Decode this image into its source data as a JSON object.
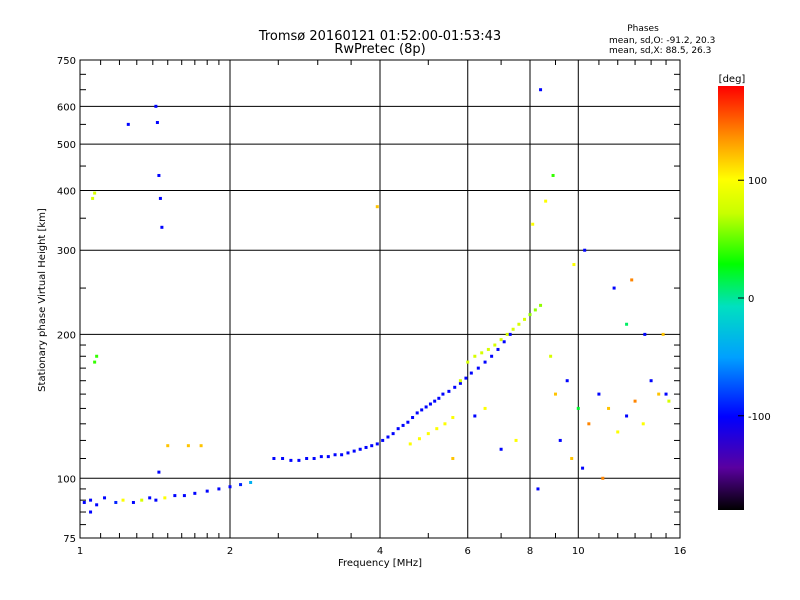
{
  "chart_data": {
    "type": "scatter",
    "title": "Tromsø 20160121 01:52:00-01:53:43",
    "subtitle": "RwPretec (8p)",
    "stats": {
      "heading": "Phases",
      "line1": "mean, sd,O:  -91.2, 20.3",
      "line2": "mean, sd,X:  88.5, 26.3"
    },
    "xlabel": "Frequency [MHz]",
    "ylabel": "Stationary phase Virtual Height [km]",
    "x_scale": "log",
    "y_scale": "log",
    "xlim": [
      1,
      16
    ],
    "ylim": [
      75,
      750
    ],
    "x_major_ticks": [
      1,
      2,
      4,
      8,
      16
    ],
    "x_minor_ticks": [
      6,
      10
    ],
    "y_major_ticks": [
      100,
      200,
      300,
      400,
      500,
      600,
      750,
      75
    ],
    "grid": true,
    "colorbar": {
      "label": "[deg]",
      "min": -180,
      "max": 180,
      "ticks": [
        100,
        0,
        -100
      ],
      "tick_labels": [
        "100",
        "0",
        "-100"
      ]
    },
    "series": [
      {
        "points": [
          [
            1.02,
            89,
            -100
          ],
          [
            1.05,
            90,
            -100
          ],
          [
            1.08,
            88,
            -100
          ],
          [
            1.12,
            91,
            -100
          ],
          [
            1.18,
            89,
            -90
          ],
          [
            1.22,
            90,
            100
          ],
          [
            1.28,
            89,
            -100
          ],
          [
            1.33,
            90,
            80
          ],
          [
            1.38,
            91,
            -100
          ],
          [
            1.42,
            90,
            -100
          ],
          [
            1.48,
            91,
            100
          ],
          [
            1.55,
            92,
            -100
          ],
          [
            1.62,
            92,
            -100
          ],
          [
            1.7,
            93,
            -100
          ],
          [
            1.8,
            94,
            -100
          ],
          [
            1.9,
            95,
            -100
          ],
          [
            2.0,
            96,
            -100
          ],
          [
            2.1,
            97,
            -90
          ],
          [
            2.2,
            98,
            -40
          ],
          [
            2.45,
            110,
            -100
          ],
          [
            2.55,
            110,
            -100
          ],
          [
            2.65,
            109,
            -100
          ],
          [
            2.75,
            109,
            -100
          ],
          [
            2.85,
            110,
            -100
          ],
          [
            2.95,
            110,
            -100
          ],
          [
            3.05,
            111,
            -100
          ],
          [
            3.15,
            111,
            -100
          ],
          [
            3.25,
            112,
            -100
          ],
          [
            3.35,
            112,
            -100
          ],
          [
            3.45,
            113,
            -100
          ],
          [
            3.55,
            114,
            -100
          ],
          [
            3.65,
            115,
            -100
          ],
          [
            3.75,
            116,
            -100
          ],
          [
            3.85,
            117,
            -100
          ],
          [
            3.95,
            118,
            -100
          ],
          [
            4.05,
            120,
            -100
          ],
          [
            4.15,
            122,
            -100
          ],
          [
            4.25,
            124,
            -100
          ],
          [
            4.35,
            127,
            -100
          ],
          [
            4.45,
            129,
            -100
          ],
          [
            4.55,
            131,
            -100
          ],
          [
            4.65,
            134,
            -100
          ],
          [
            4.75,
            137,
            -100
          ],
          [
            4.85,
            139,
            -100
          ],
          [
            4.95,
            141,
            -100
          ],
          [
            5.05,
            143,
            -100
          ],
          [
            5.15,
            145,
            -100
          ],
          [
            5.25,
            147,
            -100
          ],
          [
            5.35,
            150,
            -100
          ],
          [
            5.5,
            152,
            -100
          ],
          [
            5.65,
            155,
            -100
          ],
          [
            5.8,
            158,
            -100
          ],
          [
            5.95,
            162,
            -100
          ],
          [
            6.1,
            166,
            -100
          ],
          [
            6.3,
            170,
            -100
          ],
          [
            6.5,
            175,
            -100
          ],
          [
            6.7,
            180,
            -100
          ],
          [
            6.9,
            186,
            -100
          ],
          [
            7.1,
            193,
            -100
          ],
          [
            7.3,
            200,
            -100
          ],
          [
            4.6,
            118,
            100
          ],
          [
            4.8,
            121,
            100
          ],
          [
            5.0,
            124,
            100
          ],
          [
            5.2,
            127,
            100
          ],
          [
            5.4,
            130,
            100
          ],
          [
            5.6,
            134,
            100
          ],
          [
            5.8,
            160,
            80
          ],
          [
            6.0,
            175,
            80
          ],
          [
            6.2,
            180,
            80
          ],
          [
            6.4,
            183,
            80
          ],
          [
            6.6,
            186,
            80
          ],
          [
            6.8,
            190,
            80
          ],
          [
            7.0,
            195,
            80
          ],
          [
            7.2,
            200,
            80
          ],
          [
            7.4,
            205,
            80
          ],
          [
            7.6,
            210,
            80
          ],
          [
            7.8,
            215,
            80
          ],
          [
            8.0,
            220,
            60
          ],
          [
            8.2,
            225,
            60
          ],
          [
            8.4,
            230,
            60
          ],
          [
            1.05,
            85,
            -100
          ],
          [
            1.07,
            175,
            40
          ],
          [
            1.08,
            180,
            40
          ],
          [
            1.06,
            385,
            80
          ],
          [
            1.07,
            395,
            80
          ],
          [
            1.25,
            550,
            -100
          ],
          [
            1.42,
            600,
            -100
          ],
          [
            1.43,
            555,
            -100
          ],
          [
            1.44,
            430,
            -100
          ],
          [
            1.45,
            385,
            -100
          ],
          [
            1.46,
            335,
            -100
          ],
          [
            1.44,
            103,
            -100
          ],
          [
            1.5,
            117,
            120
          ],
          [
            1.65,
            117,
            120
          ],
          [
            1.75,
            117,
            120
          ],
          [
            3.95,
            370,
            120
          ],
          [
            8.1,
            340,
            100
          ],
          [
            8.4,
            650,
            -100
          ],
          [
            8.9,
            430,
            40
          ],
          [
            8.6,
            380,
            100
          ],
          [
            9.0,
            150,
            120
          ],
          [
            9.5,
            160,
            -100
          ],
          [
            10.0,
            140,
            20
          ],
          [
            10.5,
            130,
            140
          ],
          [
            11.0,
            150,
            -100
          ],
          [
            11.5,
            140,
            120
          ],
          [
            12.0,
            125,
            100
          ],
          [
            12.5,
            135,
            -100
          ],
          [
            13.0,
            145,
            140
          ],
          [
            13.5,
            130,
            100
          ],
          [
            14.0,
            160,
            -100
          ],
          [
            14.5,
            150,
            120
          ],
          [
            15.0,
            150,
            -100
          ],
          [
            15.2,
            145,
            80
          ],
          [
            12.5,
            210,
            10
          ],
          [
            11.8,
            250,
            -100
          ],
          [
            10.3,
            300,
            -100
          ],
          [
            9.8,
            280,
            100
          ],
          [
            8.8,
            180,
            80
          ],
          [
            9.2,
            120,
            -100
          ],
          [
            9.7,
            110,
            120
          ],
          [
            10.2,
            105,
            -100
          ],
          [
            11.2,
            100,
            140
          ],
          [
            8.3,
            95,
            -100
          ],
          [
            7.5,
            120,
            100
          ],
          [
            7.0,
            115,
            -100
          ],
          [
            6.5,
            140,
            100
          ],
          [
            6.2,
            135,
            -100
          ],
          [
            5.6,
            110,
            120
          ],
          [
            12.8,
            260,
            140
          ],
          [
            13.6,
            200,
            -100
          ],
          [
            14.8,
            200,
            120
          ]
        ]
      }
    ]
  }
}
